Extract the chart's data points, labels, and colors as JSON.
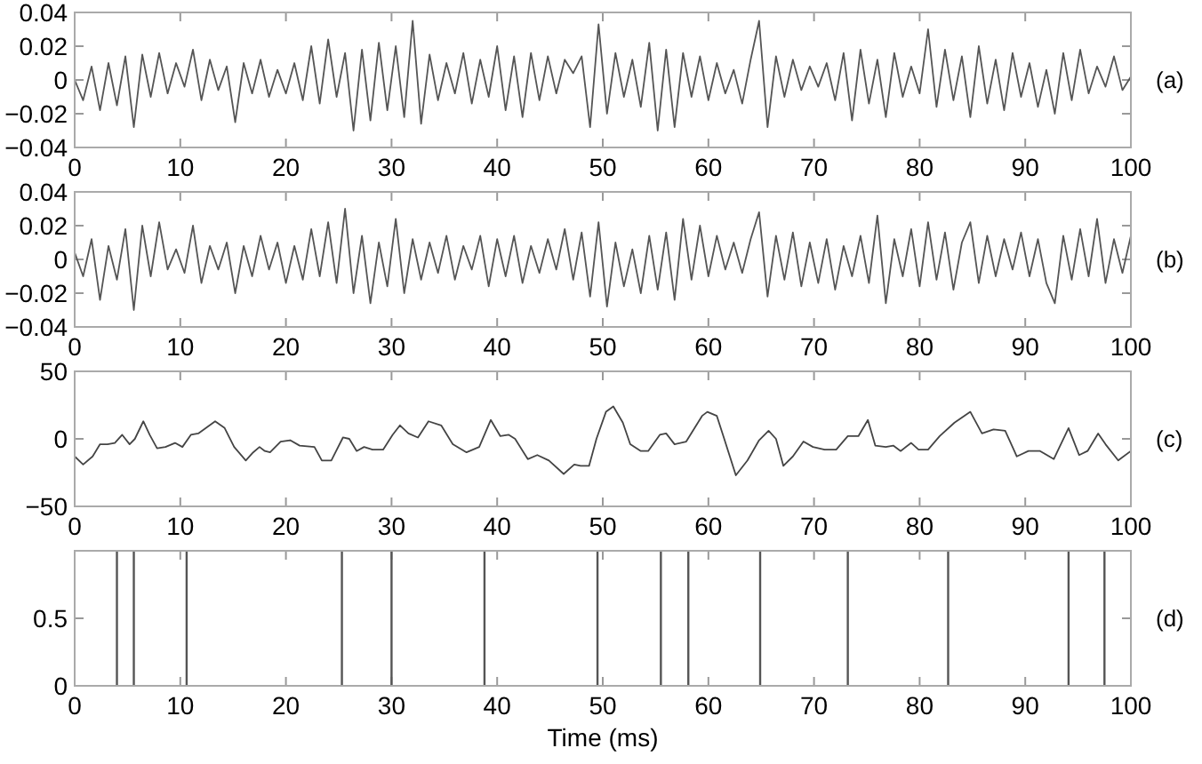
{
  "chart_data": [
    {
      "type": "line",
      "title": "(a)",
      "color": "#555555",
      "xlim": [
        0,
        100
      ],
      "xticks": [
        0,
        10,
        20,
        30,
        40,
        50,
        60,
        70,
        80,
        90,
        100
      ],
      "ylim": [
        -0.04,
        0.04
      ],
      "yticks": [
        {
          "value": -0.04,
          "label": "−0.04"
        },
        {
          "value": -0.02,
          "label": "−0.02"
        },
        0,
        0.02,
        0.04
      ],
      "x": [
        0,
        0.8,
        1.6,
        2.4,
        3.2,
        4,
        4.8,
        5.6,
        6.4,
        7.2,
        8,
        8.8,
        9.6,
        10.4,
        11.2,
        12,
        12.8,
        13.6,
        14.4,
        15.2,
        16,
        16.8,
        17.6,
        18.4,
        19.2,
        20,
        20.8,
        21.6,
        22.4,
        23.2,
        24,
        24.8,
        25.6,
        26.4,
        27.2,
        28,
        28.8,
        29.6,
        30.4,
        31.2,
        32,
        32.8,
        33.6,
        34.4,
        35.2,
        36,
        36.8,
        37.6,
        38.4,
        39.2,
        40,
        40.8,
        41.6,
        42.4,
        43.2,
        44,
        44.8,
        45.6,
        46.4,
        47.2,
        48,
        48.8,
        49.6,
        50.4,
        51.2,
        52,
        52.8,
        53.6,
        54.4,
        55.2,
        56,
        56.8,
        57.6,
        58.4,
        59.2,
        60,
        60.8,
        61.6,
        62.4,
        63.2,
        64,
        64.8,
        65.6,
        66.4,
        67.2,
        68,
        68.8,
        69.6,
        70.4,
        71.2,
        72,
        72.8,
        73.6,
        74.4,
        75.2,
        76,
        76.8,
        77.6,
        78.4,
        79.2,
        80,
        80.8,
        81.6,
        82.4,
        83.2,
        84,
        84.8,
        85.6,
        86.4,
        87.2,
        88,
        88.8,
        89.6,
        90.4,
        91.2,
        92,
        92.8,
        93.6,
        94.4,
        95.2,
        96,
        96.8,
        97.6,
        98.4,
        99.2,
        100
      ],
      "values": [
        0,
        -0.012,
        0.008,
        -0.018,
        0.01,
        -0.015,
        0.014,
        -0.028,
        0.015,
        -0.01,
        0.016,
        -0.008,
        0.01,
        -0.004,
        0.018,
        -0.012,
        0.012,
        -0.006,
        0.008,
        -0.025,
        0.01,
        -0.008,
        0.012,
        -0.01,
        0.006,
        -0.008,
        0.01,
        -0.012,
        0.02,
        -0.014,
        0.024,
        -0.01,
        0.016,
        -0.03,
        0.018,
        -0.024,
        0.022,
        -0.018,
        0.02,
        -0.022,
        0.035,
        -0.026,
        0.015,
        -0.012,
        0.01,
        -0.008,
        0.016,
        -0.014,
        0.012,
        -0.01,
        0.02,
        -0.018,
        0.014,
        -0.022,
        0.016,
        -0.012,
        0.014,
        -0.008,
        0.012,
        0.004,
        0.014,
        -0.028,
        0.033,
        -0.02,
        0.016,
        -0.01,
        0.012,
        -0.016,
        0.022,
        -0.03,
        0.018,
        -0.028,
        0.016,
        -0.01,
        0.014,
        -0.012,
        0.01,
        -0.008,
        0.006,
        -0.014,
        0.012,
        0.035,
        -0.028,
        0.014,
        -0.01,
        0.012,
        -0.006,
        0.008,
        -0.004,
        0.01,
        -0.012,
        0.016,
        -0.024,
        0.018,
        -0.014,
        0.012,
        -0.022,
        0.016,
        -0.01,
        0.008,
        -0.008,
        0.03,
        -0.016,
        0.018,
        -0.012,
        0.014,
        -0.022,
        0.02,
        -0.014,
        0.012,
        -0.018,
        0.016,
        -0.01,
        0.01,
        -0.016,
        0.006,
        -0.02,
        0.016,
        -0.012,
        0.018,
        -0.008,
        0.008,
        -0.004,
        0.014,
        -0.006,
        0.002
      ]
    },
    {
      "type": "line",
      "title": "(b)",
      "color": "#555555",
      "xlim": [
        0,
        100
      ],
      "xticks": [
        0,
        10,
        20,
        30,
        40,
        50,
        60,
        70,
        80,
        90,
        100
      ],
      "ylim": [
        -0.04,
        0.04
      ],
      "yticks": [
        {
          "value": -0.04,
          "label": "−0.04"
        },
        {
          "value": -0.02,
          "label": "−0.02"
        },
        0,
        0.02,
        0.04
      ],
      "x": [
        0,
        0.8,
        1.6,
        2.4,
        3.2,
        4,
        4.8,
        5.6,
        6.4,
        7.2,
        8,
        8.8,
        9.6,
        10.4,
        11.2,
        12,
        12.8,
        13.6,
        14.4,
        15.2,
        16,
        16.8,
        17.6,
        18.4,
        19.2,
        20,
        20.8,
        21.6,
        22.4,
        23.2,
        24,
        24.8,
        25.6,
        26.4,
        27.2,
        28,
        28.8,
        29.6,
        30.4,
        31.2,
        32,
        32.8,
        33.6,
        34.4,
        35.2,
        36,
        36.8,
        37.6,
        38.4,
        39.2,
        40,
        40.8,
        41.6,
        42.4,
        43.2,
        44,
        44.8,
        45.6,
        46.4,
        47.2,
        48,
        48.8,
        49.6,
        50.4,
        51.2,
        52,
        52.8,
        53.6,
        54.4,
        55.2,
        56,
        56.8,
        57.6,
        58.4,
        59.2,
        60,
        60.8,
        61.6,
        62.4,
        63.2,
        64,
        64.8,
        65.6,
        66.4,
        67.2,
        68,
        68.8,
        69.6,
        70.4,
        71.2,
        72,
        72.8,
        73.6,
        74.4,
        75.2,
        76,
        76.8,
        77.6,
        78.4,
        79.2,
        80,
        80.8,
        81.6,
        82.4,
        83.2,
        84,
        84.8,
        85.6,
        86.4,
        87.2,
        88,
        88.8,
        89.6,
        90.4,
        91.2,
        92,
        92.8,
        93.6,
        94.4,
        95.2,
        96,
        96.8,
        97.6,
        98.4,
        99.2,
        100
      ],
      "values": [
        0.004,
        -0.01,
        0.012,
        -0.024,
        0.008,
        -0.012,
        0.018,
        -0.03,
        0.02,
        -0.01,
        0.022,
        -0.006,
        0.006,
        -0.008,
        0.02,
        -0.014,
        0.008,
        -0.006,
        0.01,
        -0.02,
        0.008,
        -0.01,
        0.014,
        -0.006,
        0.01,
        -0.014,
        0.008,
        -0.012,
        0.018,
        -0.01,
        0.022,
        -0.014,
        0.03,
        -0.02,
        0.014,
        -0.026,
        0.01,
        -0.016,
        0.024,
        -0.02,
        0.012,
        -0.012,
        0.01,
        -0.008,
        0.014,
        -0.012,
        0.008,
        -0.006,
        0.014,
        -0.016,
        0.012,
        -0.01,
        0.014,
        -0.014,
        0.008,
        -0.008,
        0.012,
        -0.006,
        0.018,
        -0.012,
        0.016,
        -0.022,
        0.022,
        -0.028,
        0.01,
        -0.016,
        0.006,
        -0.02,
        0.014,
        -0.018,
        0.016,
        -0.024,
        0.024,
        -0.012,
        0.02,
        -0.01,
        0.014,
        -0.006,
        0.01,
        -0.008,
        0.012,
        0.028,
        -0.022,
        0.014,
        -0.012,
        0.016,
        -0.016,
        0.01,
        -0.014,
        0.012,
        -0.018,
        0.008,
        -0.01,
        0.014,
        -0.014,
        0.026,
        -0.026,
        0.012,
        -0.01,
        0.018,
        -0.016,
        0.022,
        -0.012,
        0.016,
        -0.018,
        0.01,
        0.022,
        -0.014,
        0.014,
        -0.01,
        0.012,
        -0.006,
        0.016,
        -0.01,
        0.012,
        -0.014,
        -0.026,
        0.014,
        -0.012,
        0.018,
        -0.01,
        0.024,
        -0.014,
        0.012,
        -0.008,
        0.014
      ]
    },
    {
      "type": "line",
      "title": "(c)",
      "color": "#444444",
      "xlim": [
        0,
        100
      ],
      "xticks": [
        0,
        10,
        20,
        30,
        40,
        50,
        60,
        70,
        80,
        90,
        100
      ],
      "ylim": [
        -50,
        50
      ],
      "yticks": [
        {
          "value": -50,
          "label": "−50"
        },
        0,
        50
      ],
      "x": [
        0,
        0.8,
        1.7,
        2.4,
        3.1,
        3.8,
        4.5,
        5.2,
        5.7,
        6.5,
        7.1,
        7.8,
        8.6,
        9.5,
        10.2,
        11,
        11.7,
        13.3,
        14.2,
        15.1,
        16.2,
        16.9,
        17.5,
        18,
        18.5,
        19.5,
        20.4,
        21.3,
        22.7,
        23.4,
        24.3,
        25.4,
        26,
        26.7,
        27.4,
        28.2,
        29.2,
        30.1,
        30.8,
        31.6,
        32.5,
        33.5,
        34.7,
        35.8,
        37.1,
        38.3,
        39.4,
        40.3,
        41.1,
        41.7,
        42.9,
        43.8,
        44.9,
        46.3,
        47.3,
        47.9,
        48.7,
        49.4,
        50.3,
        51,
        51.9,
        52.6,
        53.6,
        54.3,
        55.4,
        56,
        56.8,
        57.9,
        59.4,
        59.9,
        60.8,
        61.5,
        62.6,
        63.7,
        64.8,
        65.7,
        66.4,
        67.1,
        68,
        69,
        69.9,
        71,
        72.1,
        73.2,
        74.2,
        75.1,
        75.8,
        76.8,
        77.5,
        78.2,
        79.2,
        79.9,
        80.8,
        81.9,
        83.3,
        84.8,
        85.9,
        87,
        88.1,
        89.2,
        90.3,
        91.4,
        92.7,
        94.1,
        95.1,
        95.9,
        96.9,
        97.6,
        98.8,
        100
      ],
      "values": [
        -13,
        -19,
        -13,
        -4,
        -4,
        -3,
        3,
        -4,
        0,
        13,
        3,
        -7,
        -6,
        -3,
        -6,
        3,
        4,
        13,
        8,
        -6,
        -16,
        -10,
        -6,
        -9,
        -10,
        -2,
        -1,
        -5,
        -6,
        -16,
        -16,
        1,
        0,
        -9,
        -6,
        -8,
        -8,
        3,
        10,
        4,
        1,
        13,
        10,
        -4,
        -10,
        -6,
        14,
        2,
        3,
        0,
        -15,
        -12,
        -16,
        -26,
        -19,
        -20,
        -20,
        0,
        20,
        24,
        12,
        -4,
        -9,
        -9,
        3,
        4,
        -4,
        -2,
        17,
        20,
        17,
        0,
        -27,
        -16,
        -1,
        6,
        0,
        -20,
        -13,
        -2,
        -6,
        -8,
        -8,
        2,
        2,
        14,
        -5,
        -6,
        -5,
        -9,
        -3,
        -8,
        -8,
        2,
        12,
        20,
        4,
        7,
        6,
        -13,
        -9,
        -9,
        -15,
        8,
        -12,
        -9,
        4,
        -4,
        -16,
        -9
      ]
    },
    {
      "type": "bar",
      "title": "(d)",
      "xlabel": "Time (ms)",
      "color": "#555555",
      "xlim": [
        0,
        100
      ],
      "xticks": [
        0,
        10,
        20,
        30,
        40,
        50,
        60,
        70,
        80,
        90,
        100
      ],
      "ylim": [
        0,
        1
      ],
      "yticks": [
        0,
        0.5
      ],
      "x": [
        4,
        5.6,
        10.6,
        25.3,
        30,
        38.8,
        49.5,
        55.5,
        58.1,
        64.9,
        73.2,
        82.7,
        94.1,
        97.5
      ],
      "values": [
        1,
        1,
        1,
        1,
        1,
        1,
        1,
        1,
        1,
        1,
        1,
        1,
        1,
        1
      ]
    }
  ]
}
